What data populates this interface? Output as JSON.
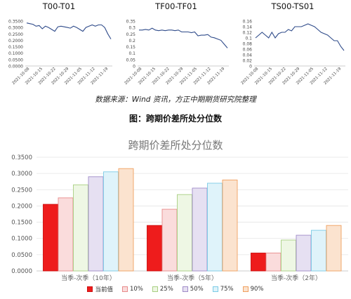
{
  "mini_charts": [
    {
      "title": "T00-T01",
      "color": "#2f4b8a",
      "y_ticks": [
        "0.3500",
        "0.3000",
        "0.2500",
        "0.2000",
        "0.1500",
        "0.1000",
        "0.0500",
        "0.0000"
      ],
      "ylim": [
        0,
        0.35
      ],
      "x_ticks": [
        "2021-10-08",
        "2021-10-15",
        "2021-10-22",
        "2021-10-29",
        "2021-11-05",
        "2021-11-12",
        "2021-11-19"
      ],
      "values": [
        0.335,
        0.33,
        0.325,
        0.31,
        0.315,
        0.29,
        0.31,
        0.3,
        0.285,
        0.27,
        0.305,
        0.31,
        0.305,
        0.3,
        0.295,
        0.31,
        0.3,
        0.285,
        0.27,
        0.3,
        0.31,
        0.32,
        0.31,
        0.32,
        0.32,
        0.3,
        0.25,
        0.21
      ]
    },
    {
      "title": "TF00-TF01",
      "color": "#2f4b8a",
      "y_ticks": [
        "0.35",
        "0.3",
        "0.25",
        "0.2",
        "0.15",
        "0.1",
        "0.05",
        "0"
      ],
      "ylim": [
        0,
        0.35
      ],
      "x_ticks": [
        "2021-10-08",
        "2021-10-15",
        "2021-10-22",
        "2021-10-29",
        "2021-11-05",
        "2021-11-12",
        "2021-11-19"
      ],
      "values": [
        0.28,
        0.28,
        0.285,
        0.28,
        0.295,
        0.28,
        0.275,
        0.28,
        0.275,
        0.28,
        0.28,
        0.275,
        0.28,
        0.265,
        0.265,
        0.265,
        0.26,
        0.265,
        0.235,
        0.24,
        0.24,
        0.245,
        0.225,
        0.22,
        0.21,
        0.2,
        0.17,
        0.14
      ]
    },
    {
      "title": "TS00-TS01",
      "color": "#2f4b8a",
      "y_ticks": [
        "0.16",
        "0.14",
        "0.12",
        "0.1",
        "0.08",
        "0.06",
        "0.04",
        "0.02",
        "0"
      ],
      "ylim": [
        0,
        0.16
      ],
      "x_ticks": [
        "2021-10-08",
        "2021-10-15",
        "2021-10-22",
        "2021-10-29",
        "2021-11-05",
        "2021-11-12",
        "2021-11-19"
      ],
      "values": [
        0.1,
        0.11,
        0.12,
        0.11,
        0.1,
        0.12,
        0.1,
        0.115,
        0.12,
        0.12,
        0.13,
        0.125,
        0.14,
        0.14,
        0.14,
        0.145,
        0.15,
        0.145,
        0.14,
        0.13,
        0.12,
        0.115,
        0.11,
        0.1,
        0.09,
        0.09,
        0.07,
        0.055
      ]
    }
  ],
  "source_note": "数据来源：Wind 资讯，方正中期期货研究院整理",
  "figure_caption": "图：跨期价差所处分位数",
  "chart_data": {
    "type": "bar",
    "title": "跨期价差所处分位数",
    "categories": [
      "当季-次季（10年）",
      "当季-次季（5年）",
      "当季-次季（2年）"
    ],
    "ylim": [
      0,
      0.35
    ],
    "y_ticks": [
      "0.0000",
      "0.0500",
      "0.1000",
      "0.1500",
      "0.2000",
      "0.2500",
      "0.3000",
      "0.3500"
    ],
    "grid": true,
    "legend_position": "bottom",
    "series": [
      {
        "name": "当前值",
        "values": [
          0.205,
          0.14,
          0.055
        ],
        "color": "#ee1c1c",
        "stroke": "#cc1010"
      },
      {
        "name": "10%",
        "values": [
          0.225,
          0.19,
          0.055
        ],
        "color": "#fadcdc",
        "stroke": "#e88a8a"
      },
      {
        "name": "25%",
        "values": [
          0.265,
          0.235,
          0.095
        ],
        "color": "#eef7e4",
        "stroke": "#a8cf82"
      },
      {
        "name": "50%",
        "values": [
          0.29,
          0.255,
          0.11
        ],
        "color": "#e6e0f2",
        "stroke": "#a08cc8"
      },
      {
        "name": "75%",
        "values": [
          0.305,
          0.27,
          0.125
        ],
        "color": "#dff3fa",
        "stroke": "#7ccbe6"
      },
      {
        "name": "90%",
        "values": [
          0.315,
          0.28,
          0.14
        ],
        "color": "#fbe3cf",
        "stroke": "#f0a060"
      }
    ]
  }
}
